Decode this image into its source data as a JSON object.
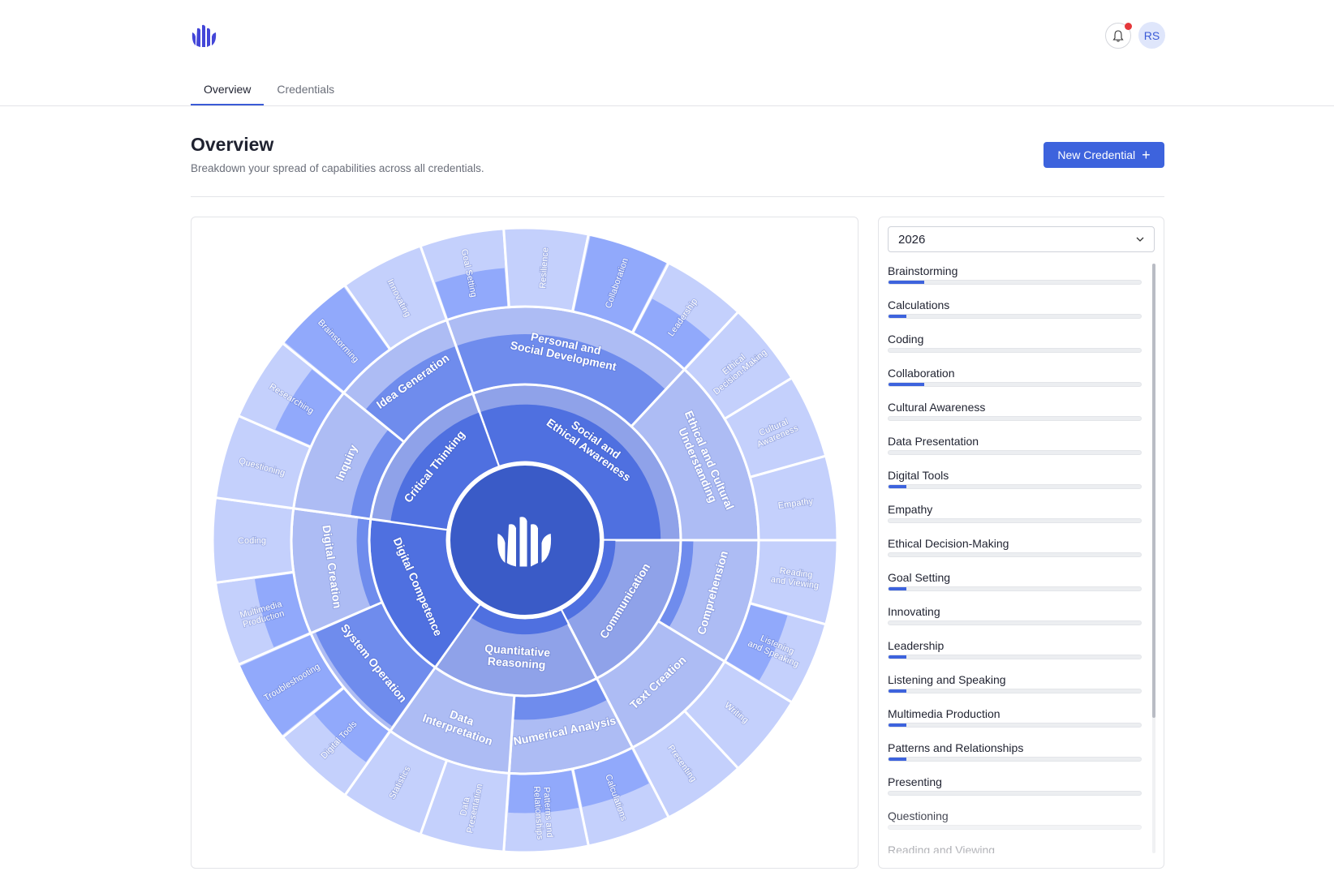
{
  "header": {
    "logo_icon": "hand-bars-logo",
    "notification_icon": "bell-icon",
    "avatar_initials": "RS"
  },
  "tabs": [
    {
      "label": "Overview",
      "active": true
    },
    {
      "label": "Credentials",
      "active": false
    }
  ],
  "page": {
    "title": "Overview",
    "subtitle": "Breakdown your spread of capabilities across all credentials.",
    "new_button_label": "New Credential",
    "new_button_icon": "plus-icon"
  },
  "filter": {
    "selected_year": "2026"
  },
  "capabilities": [
    {
      "label": "Brainstorming",
      "progress_percent": 14
    },
    {
      "label": "Calculations",
      "progress_percent": 7
    },
    {
      "label": "Coding",
      "progress_percent": 0
    },
    {
      "label": "Collaboration",
      "progress_percent": 14
    },
    {
      "label": "Cultural Awareness",
      "progress_percent": 0
    },
    {
      "label": "Data Presentation",
      "progress_percent": 0
    },
    {
      "label": "Digital Tools",
      "progress_percent": 7
    },
    {
      "label": "Empathy",
      "progress_percent": 0
    },
    {
      "label": "Ethical Decision-Making",
      "progress_percent": 0
    },
    {
      "label": "Goal Setting",
      "progress_percent": 7
    },
    {
      "label": "Innovating",
      "progress_percent": 0
    },
    {
      "label": "Leadership",
      "progress_percent": 7
    },
    {
      "label": "Listening and Speaking",
      "progress_percent": 7
    },
    {
      "label": "Multimedia Production",
      "progress_percent": 7
    },
    {
      "label": "Patterns and Relationships",
      "progress_percent": 7
    },
    {
      "label": "Presenting",
      "progress_percent": 0
    },
    {
      "label": "Questioning",
      "progress_percent": 0
    },
    {
      "label": "Reading and Viewing",
      "progress_percent": 0
    }
  ],
  "colors": {
    "accent": "#3d63dd",
    "center": "#3a5bc7",
    "ring1_base": "#8fa2e9",
    "ring1_fill": "#4f70e0",
    "ring2_base": "#adbcf4",
    "ring2_fill": "#6f8ced",
    "ring3_base": "#c4d0fc",
    "ring3_fill": "#91a9fb"
  },
  "chart_data": {
    "type": "sunburst",
    "center_icon": "hand-bars-logo",
    "note": "fill = filled fraction of each segment",
    "children": [
      {
        "name": "Social and Ethical Awareness",
        "fill": 0.75,
        "children": [
          {
            "name": "Personal and Social Development",
            "fill": 0.65,
            "children": [
              {
                "name": "Goal Setting",
                "fill": 0.5
              },
              {
                "name": "Resilience",
                "fill": 0
              },
              {
                "name": "Collaboration",
                "fill": 1
              },
              {
                "name": "Leadership",
                "fill": 0.5
              }
            ]
          },
          {
            "name": "Ethical and Cultural Understanding",
            "fill": 0,
            "children": [
              {
                "name": "Ethical Decision-Making",
                "fill": 0
              },
              {
                "name": "Cultural Awareness",
                "fill": 0
              },
              {
                "name": "Empathy",
                "fill": 0
              }
            ]
          }
        ]
      },
      {
        "name": "Communication",
        "fill": 0.15,
        "children": [
          {
            "name": "Comprehension",
            "fill": 0.15,
            "children": [
              {
                "name": "Reading and Viewing",
                "fill": 0
              },
              {
                "name": "Listening and Speaking",
                "fill": 0.5
              }
            ]
          },
          {
            "name": "Text Creation",
            "fill": 0,
            "children": [
              {
                "name": "Writing",
                "fill": 0
              },
              {
                "name": "Presenting",
                "fill": 0
              }
            ]
          }
        ]
      },
      {
        "name": "Quantitative Reasoning",
        "fill": 0.2,
        "children": [
          {
            "name": "Numerical Analysis",
            "fill": 0.3,
            "children": [
              {
                "name": "Calculations",
                "fill": 0.5
              },
              {
                "name": "Patterns and Relationships",
                "fill": 0.5
              }
            ]
          },
          {
            "name": "Data Interpretation",
            "fill": 0,
            "children": [
              {
                "name": "Data Presentation",
                "fill": 0
              },
              {
                "name": "Statistics",
                "fill": 0
              }
            ]
          }
        ]
      },
      {
        "name": "Digital Competence",
        "fill": 1,
        "children": [
          {
            "name": "System Operation",
            "fill": 0.95,
            "children": [
              {
                "name": "Digital Tools",
                "fill": 0.5
              },
              {
                "name": "Troubleshooting",
                "fill": 1
              }
            ]
          },
          {
            "name": "Digital Creation",
            "fill": 0.15,
            "children": [
              {
                "name": "Multimedia Production",
                "fill": 0.5
              },
              {
                "name": "Coding",
                "fill": 0
              }
            ]
          }
        ]
      },
      {
        "name": "Critical Thinking",
        "fill": 0.75,
        "children": [
          {
            "name": "Inquiry",
            "fill": 0.25,
            "children": [
              {
                "name": "Questioning",
                "fill": 0
              },
              {
                "name": "Researching",
                "fill": 0.5
              }
            ]
          },
          {
            "name": "Idea Generation",
            "fill": 0.65,
            "children": [
              {
                "name": "Brainstorming",
                "fill": 1
              },
              {
                "name": "Innovating",
                "fill": 0
              }
            ]
          }
        ]
      }
    ]
  }
}
